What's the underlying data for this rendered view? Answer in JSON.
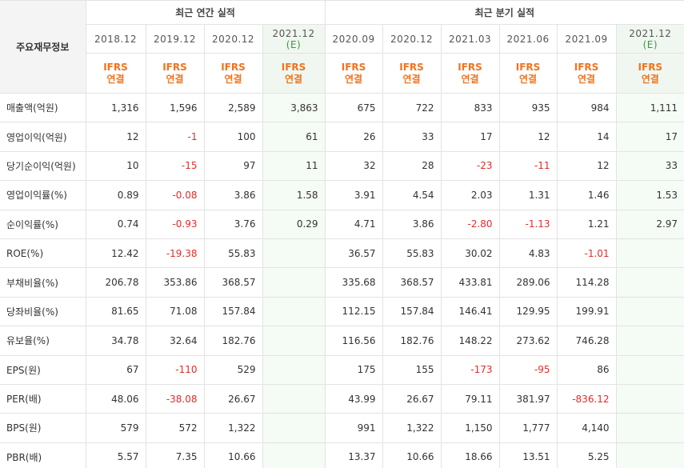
{
  "header": {
    "label_col": "주요재무정보",
    "annual_group": "최근 연간 실적",
    "quarterly_group": "최근 분기 실적",
    "periods": [
      {
        "year": "2018.12",
        "e": "",
        "est": false
      },
      {
        "year": "2019.12",
        "e": "",
        "est": false
      },
      {
        "year": "2020.12",
        "e": "",
        "est": false
      },
      {
        "year": "2021.12",
        "e": "(E)",
        "est": true
      },
      {
        "year": "2020.09",
        "e": "",
        "est": false
      },
      {
        "year": "2020.12",
        "e": "",
        "est": false
      },
      {
        "year": "2021.03",
        "e": "",
        "est": false
      },
      {
        "year": "2021.06",
        "e": "",
        "est": false
      },
      {
        "year": "2021.09",
        "e": "",
        "est": false
      },
      {
        "year": "2021.12",
        "e": "(E)",
        "est": true
      }
    ],
    "ifrs_top": "IFRS",
    "ifrs_bottom": "연결"
  },
  "rows": [
    {
      "label": "매출액(억원)",
      "values": [
        "1,316",
        "1,596",
        "2,589",
        "3,863",
        "675",
        "722",
        "833",
        "935",
        "984",
        "1,111"
      ]
    },
    {
      "label": "영업이익(억원)",
      "values": [
        "12",
        "-1",
        "100",
        "61",
        "26",
        "33",
        "17",
        "12",
        "14",
        "17"
      ]
    },
    {
      "label": "당기순이익(억원)",
      "values": [
        "10",
        "-15",
        "97",
        "11",
        "32",
        "28",
        "-23",
        "-11",
        "12",
        "33"
      ]
    },
    {
      "label": "영업이익률(%)",
      "values": [
        "0.89",
        "-0.08",
        "3.86",
        "1.58",
        "3.91",
        "4.54",
        "2.03",
        "1.31",
        "1.46",
        "1.53"
      ]
    },
    {
      "label": "순이익률(%)",
      "values": [
        "0.74",
        "-0.93",
        "3.76",
        "0.29",
        "4.71",
        "3.86",
        "-2.80",
        "-1.13",
        "1.21",
        "2.97"
      ]
    },
    {
      "label": "ROE(%)",
      "values": [
        "12.42",
        "-19.38",
        "55.83",
        "",
        "36.57",
        "55.83",
        "30.02",
        "4.83",
        "-1.01",
        ""
      ]
    },
    {
      "label": "부채비율(%)",
      "values": [
        "206.78",
        "353.86",
        "368.57",
        "",
        "335.68",
        "368.57",
        "433.81",
        "289.06",
        "114.28",
        ""
      ]
    },
    {
      "label": "당좌비율(%)",
      "values": [
        "81.65",
        "71.08",
        "157.84",
        "",
        "112.15",
        "157.84",
        "146.41",
        "129.95",
        "199.91",
        ""
      ]
    },
    {
      "label": "유보율(%)",
      "values": [
        "34.78",
        "32.64",
        "182.76",
        "",
        "116.56",
        "182.76",
        "148.22",
        "273.62",
        "746.28",
        ""
      ]
    },
    {
      "label": "EPS(원)",
      "values": [
        "67",
        "-110",
        "529",
        "",
        "175",
        "155",
        "-173",
        "-95",
        "86",
        ""
      ]
    },
    {
      "label": "PER(배)",
      "values": [
        "48.06",
        "-38.08",
        "26.67",
        "",
        "43.99",
        "26.67",
        "79.11",
        "381.97",
        "-836.12",
        ""
      ]
    },
    {
      "label": "BPS(원)",
      "values": [
        "579",
        "572",
        "1,322",
        "",
        "991",
        "1,322",
        "1,150",
        "1,777",
        "4,140",
        ""
      ]
    },
    {
      "label": "PBR(배)",
      "values": [
        "5.57",
        "7.35",
        "10.66",
        "",
        "13.37",
        "10.66",
        "18.66",
        "13.51",
        "5.25",
        ""
      ]
    }
  ],
  "colors": {
    "negative": "#e62a2a",
    "ifrs": "#f0731e",
    "estimate_bg": "#f5fbf5",
    "estimate_label": "#3a9a3a"
  }
}
